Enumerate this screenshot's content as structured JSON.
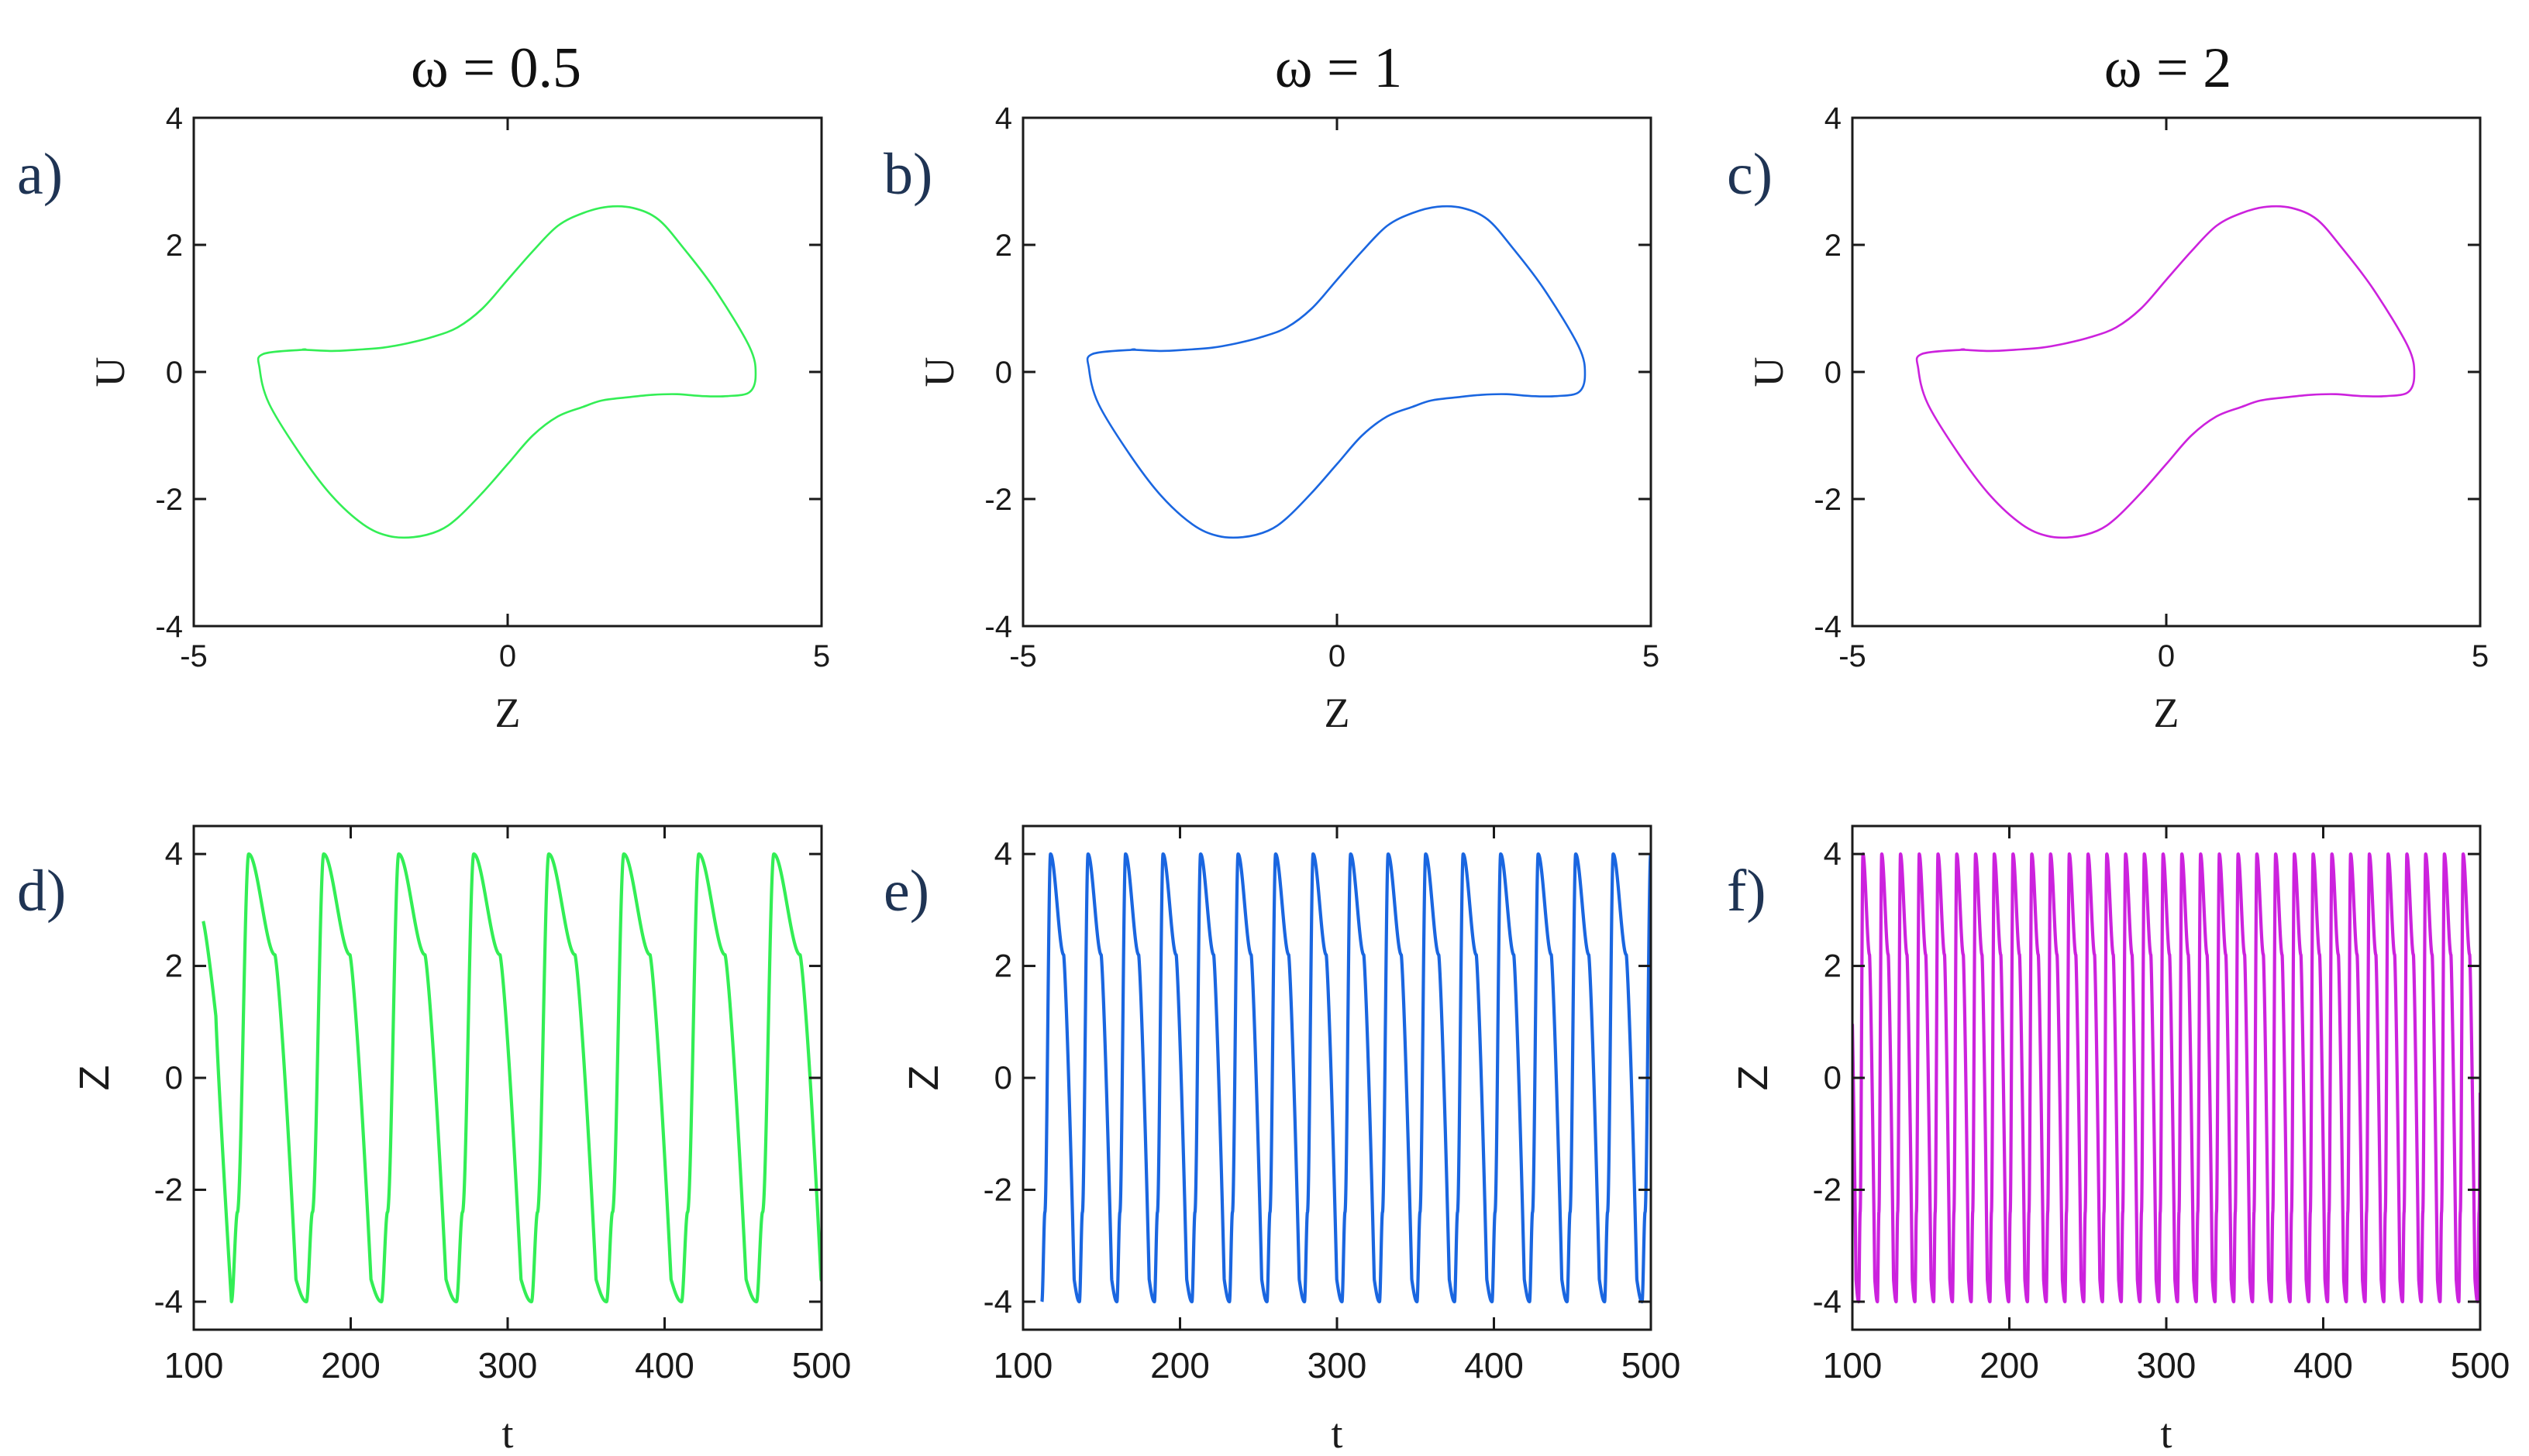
{
  "figure": {
    "column_titles": [
      "ω = 0.5",
      "ω = 1",
      "ω = 2"
    ],
    "colors": {
      "green": "#33ee55",
      "blue": "#1a66e0",
      "magenta": "#cc22dd",
      "axis": "#1a1a1a",
      "panel_label": "#1f3454"
    }
  },
  "chart_data": [
    {
      "id": "a",
      "panel_label": "a)",
      "type": "line",
      "kind": "phase",
      "omega": 0.5,
      "color": "#33ee55",
      "xlabel": "Z",
      "ylabel": "U",
      "xlim": [
        -5,
        5
      ],
      "ylim": [
        -4,
        4
      ],
      "xticks": [
        "-5",
        "0",
        "5"
      ],
      "yticks": [
        "-4",
        "-2",
        "0",
        "2",
        "4"
      ],
      "curve": "closed limit cycle: Z from -4 to 4, U from -2.6 to 2.6, peak U 2.6 near Z 1.5, trough U -2.6 near Z -1.5"
    },
    {
      "id": "b",
      "panel_label": "b)",
      "type": "line",
      "kind": "phase",
      "omega": 1,
      "color": "#1a66e0",
      "xlabel": "Z",
      "ylabel": "U",
      "xlim": [
        -5,
        5
      ],
      "ylim": [
        -4,
        4
      ],
      "xticks": [
        "-5",
        "0",
        "5"
      ],
      "yticks": [
        "-4",
        "-2",
        "0",
        "2",
        "4"
      ],
      "curve": "closed limit cycle: Z from -4 to 4, U from -2.6 to 2.6"
    },
    {
      "id": "c",
      "panel_label": "c)",
      "type": "line",
      "kind": "phase",
      "omega": 2,
      "color": "#cc22dd",
      "xlabel": "Z",
      "ylabel": "U",
      "xlim": [
        -5,
        5
      ],
      "ylim": [
        -4,
        4
      ],
      "xticks": [
        "-5",
        "0",
        "5"
      ],
      "yticks": [
        "-4",
        "-2",
        "0",
        "2",
        "4"
      ],
      "curve": "closed limit cycle: Z from -4 to 4, U from -2.6 to 2.6"
    },
    {
      "id": "d",
      "panel_label": "d)",
      "type": "line",
      "kind": "time",
      "omega": 0.5,
      "color": "#33ee55",
      "xlabel": "t",
      "ylabel": "Z",
      "xlim": [
        100,
        500
      ],
      "ylim": [
        -4.5,
        4.5
      ],
      "xticks": [
        "100",
        "200",
        "300",
        "400",
        "500"
      ],
      "yticks": [
        "-4",
        "-2",
        "0",
        "2",
        "4"
      ],
      "period": 47.8,
      "min_times": [
        124,
        172,
        220,
        268,
        316,
        364,
        412,
        460
      ],
      "t_start": 106,
      "z_start": 2.8,
      "amplitude": 4
    },
    {
      "id": "e",
      "panel_label": "e)",
      "type": "line",
      "kind": "time",
      "omega": 1,
      "color": "#1a66e0",
      "xlabel": "t",
      "ylabel": "Z",
      "xlim": [
        100,
        500
      ],
      "ylim": [
        -4.5,
        4.5
      ],
      "xticks": [
        "100",
        "200",
        "300",
        "400",
        "500"
      ],
      "yticks": [
        "-4",
        "-2",
        "0",
        "2",
        "4"
      ],
      "period": 23.9,
      "first_min_time": 112,
      "t_start": 112,
      "z_start": -4,
      "amplitude": 4
    },
    {
      "id": "f",
      "panel_label": "f)",
      "type": "line",
      "kind": "time",
      "omega": 2,
      "color": "#cc22dd",
      "xlabel": "t",
      "ylabel": "Z",
      "xlim": [
        100,
        500
      ],
      "ylim": [
        -4.5,
        4.5
      ],
      "xticks": [
        "100",
        "200",
        "300",
        "400",
        "500"
      ],
      "yticks": [
        "-4",
        "-2",
        "0",
        "2",
        "4"
      ],
      "period": 11.95,
      "first_min_time": 104,
      "t_start": 100,
      "z_start": -2,
      "amplitude": 4
    }
  ]
}
